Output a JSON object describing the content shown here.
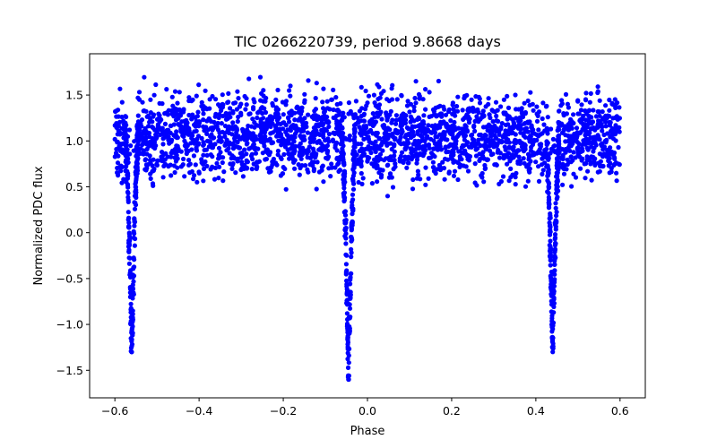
{
  "chart_data": {
    "type": "scatter",
    "title": "TIC 0266220739, period 9.8668 days",
    "xlabel": "Phase",
    "ylabel": "Normalized PDC flux",
    "xlim": [
      -0.66,
      0.66
    ],
    "ylim": [
      -1.8,
      1.95
    ],
    "grid": false,
    "legend": "none",
    "marker_color": "#0000ff",
    "x_ticks": [
      {
        "value": -0.6,
        "label": "−0.6"
      },
      {
        "value": -0.4,
        "label": "−0.4"
      },
      {
        "value": -0.2,
        "label": "−0.2"
      },
      {
        "value": 0.0,
        "label": "0.0"
      },
      {
        "value": 0.2,
        "label": "0.2"
      },
      {
        "value": 0.4,
        "label": "0.4"
      },
      {
        "value": 0.6,
        "label": "0.6"
      }
    ],
    "y_ticks": [
      {
        "value": -1.5,
        "label": "−1.5"
      },
      {
        "value": -1.0,
        "label": "−1.0"
      },
      {
        "value": -0.5,
        "label": "−0.5"
      },
      {
        "value": 0.0,
        "label": "0.0"
      },
      {
        "value": 0.5,
        "label": "0.5"
      },
      {
        "value": 1.0,
        "label": "1.0"
      },
      {
        "value": 1.5,
        "label": "1.5"
      }
    ],
    "series": [
      {
        "name": "flux",
        "phase_range": [
          -0.6,
          0.6
        ],
        "baseline_flux": 1.05,
        "baseline_scatter": 0.22,
        "eclipses": [
          {
            "center_phase": -0.56,
            "min_flux": -1.3,
            "half_width": 0.016
          },
          {
            "center_phase": -0.045,
            "min_flux": -1.6,
            "half_width": 0.016
          },
          {
            "center_phase": 0.44,
            "min_flux": -1.3,
            "half_width": 0.016
          }
        ]
      }
    ]
  }
}
